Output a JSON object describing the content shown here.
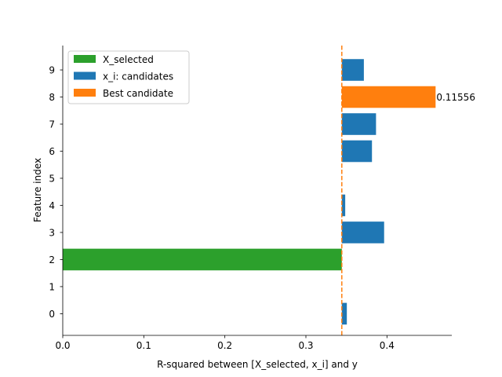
{
  "chart_data": {
    "type": "bar",
    "orientation": "horizontal",
    "title": "",
    "xlabel": "R-squared between [X_selected, x_i] and y",
    "ylabel": "Feature index",
    "xlim": [
      0,
      0.48
    ],
    "ylim": [
      -0.8,
      9.9
    ],
    "xticks": [
      0.0,
      0.1,
      0.2,
      0.3,
      0.4
    ],
    "xtick_labels": [
      "0.0",
      "0.1",
      "0.2",
      "0.3",
      "0.4"
    ],
    "yticks": [
      0,
      1,
      2,
      3,
      4,
      5,
      6,
      7,
      8,
      9
    ],
    "ytick_labels": [
      "0",
      "1",
      "2",
      "3",
      "4",
      "5",
      "6",
      "7",
      "8",
      "9"
    ],
    "baseline_r2": 0.3443,
    "bar_height": 0.8,
    "grid": false,
    "legend_position": "upper left",
    "series": [
      {
        "name": "X_selected",
        "color": "#2ca02c",
        "bars": [
          {
            "feature": 2,
            "start": 0.0,
            "end": 0.3443
          }
        ]
      },
      {
        "name": "x_i: candidates",
        "color": "#1f77b4",
        "bars": [
          {
            "feature": 0,
            "start": 0.3443,
            "end": 0.3505
          },
          {
            "feature": 3,
            "start": 0.3443,
            "end": 0.3965
          },
          {
            "feature": 4,
            "start": 0.3443,
            "end": 0.3485
          },
          {
            "feature": 6,
            "start": 0.3443,
            "end": 0.3815
          },
          {
            "feature": 7,
            "start": 0.3443,
            "end": 0.3865
          },
          {
            "feature": 9,
            "start": 0.3443,
            "end": 0.3715
          }
        ]
      },
      {
        "name": "Best candidate",
        "color": "#ff7f0e",
        "bars": [
          {
            "feature": 8,
            "start": 0.3443,
            "end": 0.46,
            "label": "0.11556"
          }
        ]
      }
    ],
    "reference_line": {
      "x": 0.3443,
      "color": "#ff7f0e",
      "style": "dashed"
    }
  }
}
